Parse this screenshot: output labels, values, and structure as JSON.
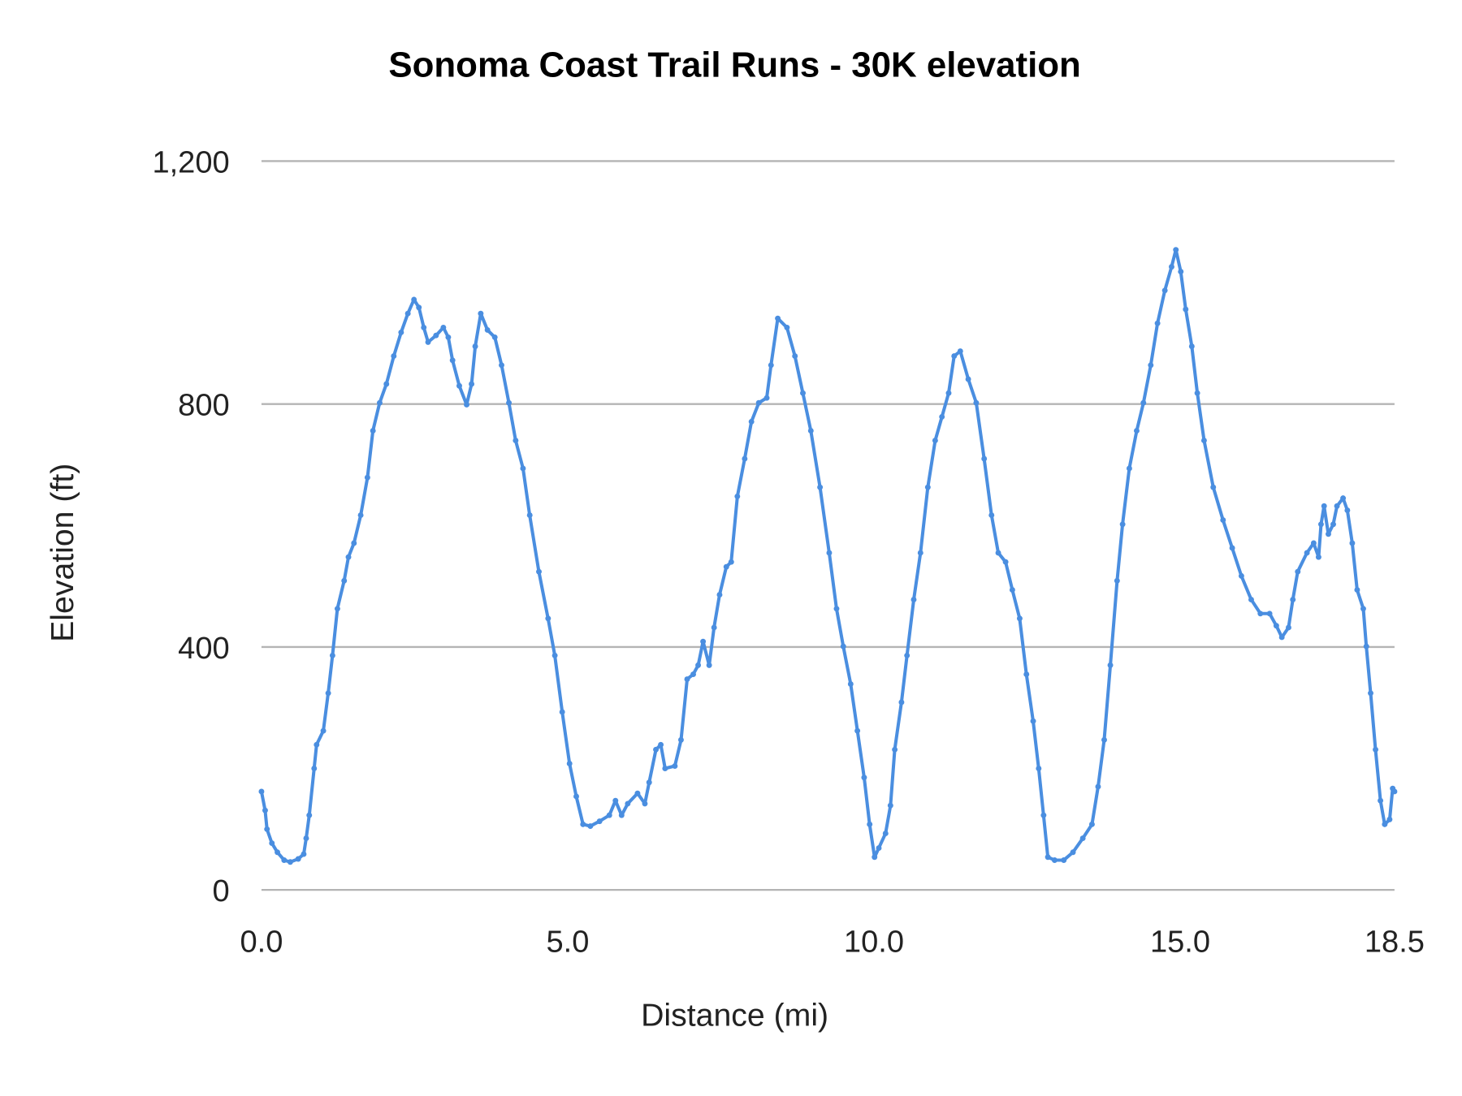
{
  "chart_data": {
    "type": "line",
    "title": "Sonoma Coast Trail Runs - 30K elevation",
    "xlabel": "Distance (mi)",
    "ylabel": "Elevation (ft)",
    "xlim": [
      0,
      18.5
    ],
    "ylim": [
      0,
      1200
    ],
    "x_ticks": [
      "0.0",
      "5.0",
      "10.0",
      "15.0",
      "18.5"
    ],
    "x_tick_values": [
      0,
      5,
      10,
      15,
      18.5
    ],
    "y_ticks": [
      "0",
      "400",
      "800",
      "1,200"
    ],
    "y_tick_values": [
      0,
      400,
      800,
      1200
    ],
    "grid": "horizontal",
    "legend": "none",
    "markers": true,
    "color": "#4a8ee0",
    "series": [
      {
        "x": [
          0,
          0.06,
          0.09,
          0.17,
          0.26,
          0.37,
          0.47,
          0.6,
          0.69,
          0.73,
          0.78,
          0.86,
          0.9,
          1.01,
          1.09,
          1.16,
          1.24,
          1.35,
          1.42,
          1.51,
          1.62,
          1.73,
          1.82,
          1.93,
          2.04,
          2.16,
          2.28,
          2.39,
          2.49,
          2.57,
          2.65,
          2.72,
          2.85,
          2.97,
          3.05,
          3.12,
          3.23,
          3.35,
          3.43,
          3.49,
          3.58,
          3.69,
          3.81,
          3.92,
          4.04,
          4.15,
          4.27,
          4.38,
          4.53,
          4.68,
          4.79,
          4.91,
          5.03,
          5.14,
          5.25,
          5.37,
          5.52,
          5.68,
          5.78,
          5.88,
          5.98,
          6.14,
          6.26,
          6.33,
          6.44,
          6.52,
          6.59,
          6.75,
          6.85,
          6.95,
          7.05,
          7.13,
          7.21,
          7.31,
          7.39,
          7.48,
          7.59,
          7.67,
          7.77,
          7.89,
          8.0,
          8.12,
          8.25,
          8.32,
          8.43,
          8.58,
          8.71,
          8.84,
          8.97,
          9.12,
          9.27,
          9.39,
          9.5,
          9.62,
          9.73,
          9.84,
          9.93,
          10.01,
          10.08,
          10.19,
          10.27,
          10.34,
          10.45,
          10.54,
          10.65,
          10.76,
          10.88,
          11.0,
          11.11,
          11.22,
          11.31,
          11.41,
          11.54,
          11.67,
          11.8,
          11.92,
          12.03,
          12.15,
          12.26,
          12.38,
          12.49,
          12.6,
          12.69,
          12.77,
          12.84,
          12.95,
          13.1,
          13.25,
          13.41,
          13.56,
          13.66,
          13.76,
          13.86,
          13.97,
          14.06,
          14.17,
          14.29,
          14.4,
          14.52,
          14.63,
          14.75,
          14.86,
          14.93,
          15.01,
          15.09,
          15.19,
          15.28,
          15.39,
          15.54,
          15.7,
          15.85,
          16.0,
          16.16,
          16.31,
          16.46,
          16.57,
          16.66,
          16.77,
          16.84,
          16.92,
          17.07,
          17.18,
          17.26,
          17.3,
          17.35,
          17.42,
          17.5,
          17.56,
          17.66,
          17.73,
          17.81,
          17.89,
          17.99,
          18.04,
          18.11,
          18.19,
          18.27,
          18.34,
          18.42,
          18.47,
          18.5
        ],
        "y": [
          162,
          131,
          100,
          77,
          62,
          49,
          46,
          51,
          59,
          85,
          123,
          200,
          239,
          262,
          324,
          386,
          463,
          509,
          548,
          571,
          617,
          679,
          756,
          802,
          833,
          879,
          918,
          949,
          972,
          959,
          926,
          902,
          913,
          926,
          910,
          872,
          830,
          799,
          833,
          895,
          949,
          922,
          910,
          864,
          802,
          740,
          694,
          617,
          524,
          447,
          386,
          293,
          208,
          154,
          108,
          105,
          113,
          123,
          147,
          123,
          142,
          159,
          142,
          177,
          231,
          239,
          200,
          204,
          247,
          347,
          355,
          370,
          409,
          370,
          432,
          486,
          532,
          540,
          648,
          710,
          771,
          802,
          810,
          864,
          941,
          926,
          879,
          818,
          756,
          663,
          555,
          463,
          401,
          339,
          262,
          185,
          108,
          54,
          69,
          93,
          139,
          231,
          309,
          386,
          478,
          555,
          663,
          740,
          779,
          818,
          879,
          887,
          841,
          802,
          710,
          617,
          555,
          540,
          494,
          447,
          355,
          278,
          200,
          123,
          54,
          49,
          49,
          62,
          85,
          108,
          170,
          247,
          370,
          509,
          602,
          694,
          756,
          802,
          864,
          933,
          987,
          1026,
          1054,
          1018,
          956,
          895,
          818,
          740,
          663,
          609,
          563,
          517,
          478,
          455,
          455,
          435,
          416,
          432,
          478,
          524,
          555,
          571,
          548,
          602,
          632,
          586,
          602,
          632,
          645,
          625,
          571,
          494,
          463,
          401,
          324,
          231,
          147,
          108,
          116,
          167,
          162
        ]
      }
    ]
  }
}
